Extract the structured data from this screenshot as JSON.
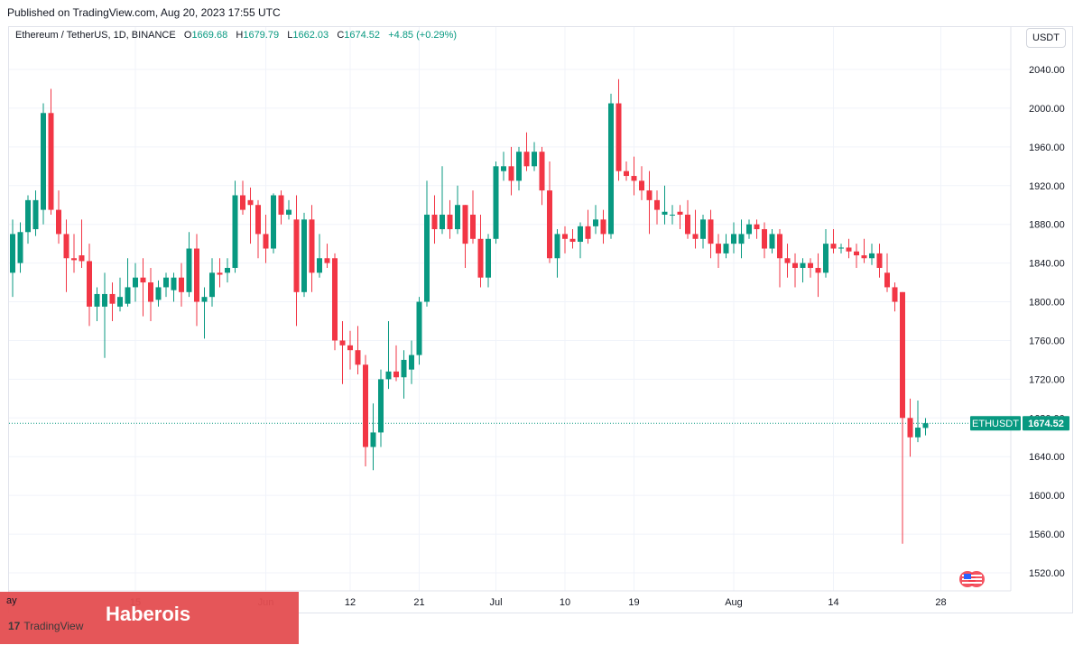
{
  "published": "Published on TradingView.com, Aug 20, 2023 17:55 UTC",
  "legend": {
    "symbol": "Ethereum / TetherUS, 1D, BINANCE",
    "o_label": "O",
    "o_value": "1669.68",
    "h_label": "H",
    "h_value": "1679.79",
    "l_label": "L",
    "l_value": "1662.03",
    "c_label": "C",
    "c_value": "1674.52",
    "change": "+4.85 (+0.29%)"
  },
  "currency_button": "USDT",
  "price_tag": {
    "symbol": "ETHUSDT",
    "price": "1674.52"
  },
  "watermark": {
    "text": "Haberois",
    "logo_glyph": "17",
    "logo_text": "TradingView",
    "first_x_label": "ay"
  },
  "colors": {
    "up": "#089981",
    "down": "#f23645",
    "grid": "#f0f3fa",
    "price_line": "#089981"
  },
  "icons": {
    "flag": "us-flag-icon"
  },
  "chart_data": {
    "type": "candlestick",
    "title": "Ethereum / TetherUS, 1D, BINANCE",
    "ylim": [
      1510,
      2060
    ],
    "y_ticks": [
      "2040.00",
      "2000.00",
      "1960.00",
      "1920.00",
      "1880.00",
      "1840.00",
      "1800.00",
      "1760.00",
      "1720.00",
      "1680.00",
      "1640.00",
      "1600.00",
      "1560.00",
      "1520.00"
    ],
    "x_ticks": [
      {
        "label": "15",
        "index": 16
      },
      {
        "label": "Jun",
        "index": 33
      },
      {
        "label": "12",
        "index": 44
      },
      {
        "label": "21",
        "index": 53
      },
      {
        "label": "Jul",
        "index": 63
      },
      {
        "label": "10",
        "index": 72
      },
      {
        "label": "19",
        "index": 81
      },
      {
        "label": "Aug",
        "index": 94
      },
      {
        "label": "14",
        "index": 107
      },
      {
        "label": "28",
        "index": 121
      }
    ],
    "candles": [
      {
        "o": 1830,
        "h": 1885,
        "l": 1805,
        "c": 1870
      },
      {
        "o": 1840,
        "h": 1882,
        "l": 1830,
        "c": 1872
      },
      {
        "o": 1872,
        "h": 1910,
        "l": 1860,
        "c": 1905
      },
      {
        "o": 1875,
        "h": 1915,
        "l": 1868,
        "c": 1905
      },
      {
        "o": 1895,
        "h": 2005,
        "l": 1880,
        "c": 1995
      },
      {
        "o": 1995,
        "h": 2020,
        "l": 1890,
        "c": 1895
      },
      {
        "o": 1895,
        "h": 1915,
        "l": 1860,
        "c": 1870
      },
      {
        "o": 1870,
        "h": 1885,
        "l": 1810,
        "c": 1845
      },
      {
        "o": 1845,
        "h": 1870,
        "l": 1830,
        "c": 1843
      },
      {
        "o": 1848,
        "h": 1885,
        "l": 1835,
        "c": 1842
      },
      {
        "o": 1842,
        "h": 1860,
        "l": 1775,
        "c": 1795
      },
      {
        "o": 1795,
        "h": 1815,
        "l": 1780,
        "c": 1808
      },
      {
        "o": 1795,
        "h": 1830,
        "l": 1742,
        "c": 1808
      },
      {
        "o": 1808,
        "h": 1820,
        "l": 1780,
        "c": 1798
      },
      {
        "o": 1795,
        "h": 1825,
        "l": 1790,
        "c": 1805
      },
      {
        "o": 1798,
        "h": 1845,
        "l": 1795,
        "c": 1815
      },
      {
        "o": 1815,
        "h": 1840,
        "l": 1800,
        "c": 1825
      },
      {
        "o": 1825,
        "h": 1845,
        "l": 1785,
        "c": 1820
      },
      {
        "o": 1820,
        "h": 1835,
        "l": 1780,
        "c": 1800
      },
      {
        "o": 1802,
        "h": 1822,
        "l": 1795,
        "c": 1815
      },
      {
        "o": 1815,
        "h": 1830,
        "l": 1805,
        "c": 1825
      },
      {
        "o": 1812,
        "h": 1830,
        "l": 1800,
        "c": 1825
      },
      {
        "o": 1825,
        "h": 1840,
        "l": 1795,
        "c": 1810
      },
      {
        "o": 1810,
        "h": 1872,
        "l": 1805,
        "c": 1855
      },
      {
        "o": 1855,
        "h": 1870,
        "l": 1775,
        "c": 1800
      },
      {
        "o": 1800,
        "h": 1815,
        "l": 1762,
        "c": 1805
      },
      {
        "o": 1805,
        "h": 1845,
        "l": 1795,
        "c": 1830
      },
      {
        "o": 1830,
        "h": 1845,
        "l": 1815,
        "c": 1828
      },
      {
        "o": 1830,
        "h": 1845,
        "l": 1820,
        "c": 1835
      },
      {
        "o": 1835,
        "h": 1925,
        "l": 1830,
        "c": 1910
      },
      {
        "o": 1910,
        "h": 1925,
        "l": 1890,
        "c": 1895
      },
      {
        "o": 1905,
        "h": 1918,
        "l": 1860,
        "c": 1900
      },
      {
        "o": 1900,
        "h": 1905,
        "l": 1845,
        "c": 1870
      },
      {
        "o": 1870,
        "h": 1890,
        "l": 1840,
        "c": 1855
      },
      {
        "o": 1855,
        "h": 1912,
        "l": 1850,
        "c": 1910
      },
      {
        "o": 1910,
        "h": 1915,
        "l": 1880,
        "c": 1890
      },
      {
        "o": 1890,
        "h": 1905,
        "l": 1885,
        "c": 1895
      },
      {
        "o": 1885,
        "h": 1910,
        "l": 1775,
        "c": 1810
      },
      {
        "o": 1810,
        "h": 1892,
        "l": 1805,
        "c": 1885
      },
      {
        "o": 1885,
        "h": 1900,
        "l": 1810,
        "c": 1830
      },
      {
        "o": 1830,
        "h": 1870,
        "l": 1825,
        "c": 1845
      },
      {
        "o": 1845,
        "h": 1860,
        "l": 1835,
        "c": 1840
      },
      {
        "o": 1845,
        "h": 1850,
        "l": 1750,
        "c": 1760
      },
      {
        "o": 1760,
        "h": 1780,
        "l": 1715,
        "c": 1755
      },
      {
        "o": 1755,
        "h": 1770,
        "l": 1730,
        "c": 1750
      },
      {
        "o": 1750,
        "h": 1775,
        "l": 1725,
        "c": 1735
      },
      {
        "o": 1735,
        "h": 1745,
        "l": 1630,
        "c": 1650
      },
      {
        "o": 1650,
        "h": 1695,
        "l": 1626,
        "c": 1665
      },
      {
        "o": 1665,
        "h": 1730,
        "l": 1650,
        "c": 1720
      },
      {
        "o": 1720,
        "h": 1780,
        "l": 1710,
        "c": 1728
      },
      {
        "o": 1728,
        "h": 1755,
        "l": 1718,
        "c": 1722
      },
      {
        "o": 1722,
        "h": 1750,
        "l": 1700,
        "c": 1740
      },
      {
        "o": 1730,
        "h": 1760,
        "l": 1715,
        "c": 1745
      },
      {
        "o": 1745,
        "h": 1805,
        "l": 1735,
        "c": 1800
      },
      {
        "o": 1800,
        "h": 1925,
        "l": 1795,
        "c": 1890
      },
      {
        "o": 1890,
        "h": 1910,
        "l": 1860,
        "c": 1875
      },
      {
        "o": 1875,
        "h": 1940,
        "l": 1870,
        "c": 1890
      },
      {
        "o": 1890,
        "h": 1905,
        "l": 1865,
        "c": 1875
      },
      {
        "o": 1875,
        "h": 1920,
        "l": 1870,
        "c": 1900
      },
      {
        "o": 1900,
        "h": 1900,
        "l": 1835,
        "c": 1860
      },
      {
        "o": 1890,
        "h": 1915,
        "l": 1860,
        "c": 1865
      },
      {
        "o": 1865,
        "h": 1890,
        "l": 1815,
        "c": 1825
      },
      {
        "o": 1825,
        "h": 1870,
        "l": 1815,
        "c": 1865
      },
      {
        "o": 1865,
        "h": 1945,
        "l": 1860,
        "c": 1940
      },
      {
        "o": 1935,
        "h": 1955,
        "l": 1925,
        "c": 1940
      },
      {
        "o": 1940,
        "h": 1960,
        "l": 1910,
        "c": 1925
      },
      {
        "o": 1925,
        "h": 1960,
        "l": 1915,
        "c": 1955
      },
      {
        "o": 1955,
        "h": 1975,
        "l": 1935,
        "c": 1940
      },
      {
        "o": 1940,
        "h": 1965,
        "l": 1935,
        "c": 1955
      },
      {
        "o": 1955,
        "h": 1960,
        "l": 1900,
        "c": 1915
      },
      {
        "o": 1915,
        "h": 1945,
        "l": 1840,
        "c": 1845
      },
      {
        "o": 1845,
        "h": 1875,
        "l": 1825,
        "c": 1870
      },
      {
        "o": 1870,
        "h": 1878,
        "l": 1850,
        "c": 1865
      },
      {
        "o": 1865,
        "h": 1875,
        "l": 1855,
        "c": 1862
      },
      {
        "o": 1862,
        "h": 1882,
        "l": 1845,
        "c": 1878
      },
      {
        "o": 1878,
        "h": 1895,
        "l": 1860,
        "c": 1865
      },
      {
        "o": 1878,
        "h": 1900,
        "l": 1870,
        "c": 1885
      },
      {
        "o": 1885,
        "h": 1895,
        "l": 1860,
        "c": 1870
      },
      {
        "o": 1870,
        "h": 2015,
        "l": 1865,
        "c": 2005
      },
      {
        "o": 2005,
        "h": 2030,
        "l": 1925,
        "c": 1935
      },
      {
        "o": 1935,
        "h": 1945,
        "l": 1925,
        "c": 1930
      },
      {
        "o": 1930,
        "h": 1950,
        "l": 1910,
        "c": 1925
      },
      {
        "o": 1925,
        "h": 1940,
        "l": 1905,
        "c": 1915
      },
      {
        "o": 1915,
        "h": 1935,
        "l": 1870,
        "c": 1905
      },
      {
        "o": 1905,
        "h": 1915,
        "l": 1880,
        "c": 1895
      },
      {
        "o": 1890,
        "h": 1920,
        "l": 1880,
        "c": 1893
      },
      {
        "o": 1890,
        "h": 1900,
        "l": 1880,
        "c": 1890
      },
      {
        "o": 1893,
        "h": 1900,
        "l": 1875,
        "c": 1890
      },
      {
        "o": 1890,
        "h": 1905,
        "l": 1865,
        "c": 1870
      },
      {
        "o": 1870,
        "h": 1895,
        "l": 1855,
        "c": 1865
      },
      {
        "o": 1865,
        "h": 1890,
        "l": 1855,
        "c": 1885
      },
      {
        "o": 1885,
        "h": 1895,
        "l": 1845,
        "c": 1860
      },
      {
        "o": 1860,
        "h": 1870,
        "l": 1835,
        "c": 1850
      },
      {
        "o": 1850,
        "h": 1870,
        "l": 1845,
        "c": 1860
      },
      {
        "o": 1860,
        "h": 1882,
        "l": 1850,
        "c": 1870
      },
      {
        "o": 1860,
        "h": 1885,
        "l": 1845,
        "c": 1870
      },
      {
        "o": 1870,
        "h": 1885,
        "l": 1865,
        "c": 1880
      },
      {
        "o": 1880,
        "h": 1885,
        "l": 1865,
        "c": 1875
      },
      {
        "o": 1875,
        "h": 1882,
        "l": 1845,
        "c": 1855
      },
      {
        "o": 1855,
        "h": 1875,
        "l": 1850,
        "c": 1870
      },
      {
        "o": 1870,
        "h": 1875,
        "l": 1815,
        "c": 1845
      },
      {
        "o": 1845,
        "h": 1860,
        "l": 1825,
        "c": 1840
      },
      {
        "o": 1840,
        "h": 1850,
        "l": 1815,
        "c": 1835
      },
      {
        "o": 1835,
        "h": 1845,
        "l": 1820,
        "c": 1840
      },
      {
        "o": 1840,
        "h": 1845,
        "l": 1825,
        "c": 1835
      },
      {
        "o": 1835,
        "h": 1850,
        "l": 1805,
        "c": 1830
      },
      {
        "o": 1830,
        "h": 1875,
        "l": 1825,
        "c": 1860
      },
      {
        "o": 1860,
        "h": 1875,
        "l": 1850,
        "c": 1855
      },
      {
        "o": 1855,
        "h": 1860,
        "l": 1850,
        "c": 1856
      },
      {
        "o": 1856,
        "h": 1865,
        "l": 1845,
        "c": 1852
      },
      {
        "o": 1852,
        "h": 1860,
        "l": 1835,
        "c": 1848
      },
      {
        "o": 1848,
        "h": 1865,
        "l": 1840,
        "c": 1845
      },
      {
        "o": 1845,
        "h": 1860,
        "l": 1838,
        "c": 1850
      },
      {
        "o": 1850,
        "h": 1860,
        "l": 1825,
        "c": 1835
      },
      {
        "o": 1830,
        "h": 1850,
        "l": 1810,
        "c": 1815
      },
      {
        "o": 1815,
        "h": 1820,
        "l": 1790,
        "c": 1800
      },
      {
        "o": 1810,
        "h": 1810,
        "l": 1550,
        "c": 1680
      },
      {
        "o": 1680,
        "h": 1700,
        "l": 1640,
        "c": 1660
      },
      {
        "o": 1660,
        "h": 1698,
        "l": 1655,
        "c": 1670
      },
      {
        "o": 1669.68,
        "h": 1679.79,
        "l": 1662.03,
        "c": 1674.52
      }
    ]
  }
}
